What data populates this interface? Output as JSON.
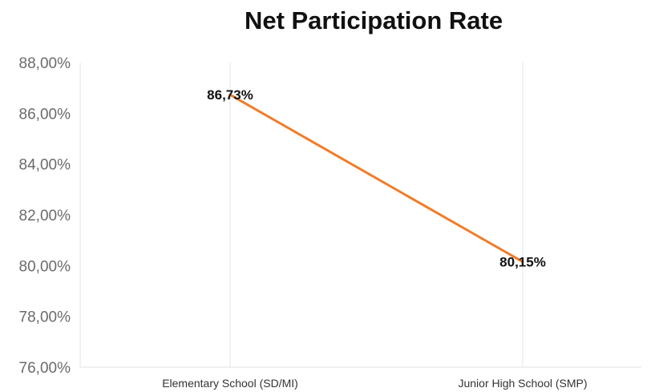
{
  "chart_data": {
    "type": "line",
    "title": "Net Participation Rate",
    "xlabel": "",
    "ylabel": "",
    "categories": [
      "Elementary School (SD/MI)",
      "Junior High School (SMP)"
    ],
    "series": [
      {
        "values": [
          86.73,
          80.15
        ],
        "labels": [
          "86,73%",
          "80,15%"
        ],
        "color": "#f07c2a"
      }
    ],
    "ylim": [
      76,
      88
    ],
    "yticks": [
      76,
      78,
      80,
      82,
      84,
      86,
      88
    ],
    "ytick_labels": [
      "76,00%",
      "78,00%",
      "80,00%",
      "82,00%",
      "84,00%",
      "86,00%",
      "88,00%"
    ],
    "grid": "vertical",
    "legend": "none"
  }
}
